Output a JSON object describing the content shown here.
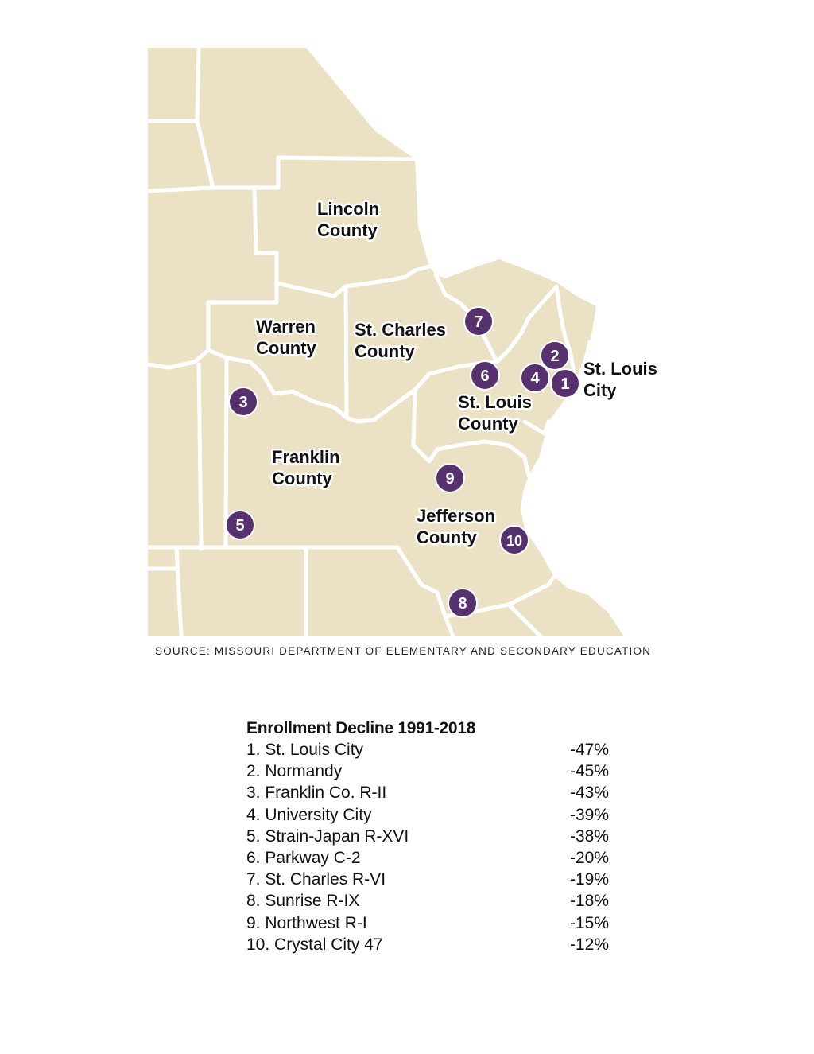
{
  "map": {
    "colors": {
      "land": "#ebe2c6",
      "border": "#ffffff",
      "marker": "#57306e",
      "marker_text": "#ffffff",
      "label_text": "#111111"
    },
    "counties": [
      {
        "id": "lincoln",
        "line1": "Lincoln",
        "line2": "County"
      },
      {
        "id": "warren",
        "line1": "Warren",
        "line2": "County"
      },
      {
        "id": "st-charles",
        "line1": "St. Charles",
        "line2": "County"
      },
      {
        "id": "st-louis-city",
        "line1": "St. Louis",
        "line2": "City"
      },
      {
        "id": "st-louis-county",
        "line1": "St. Louis",
        "line2": "County"
      },
      {
        "id": "franklin",
        "line1": "Franklin",
        "line2": "County"
      },
      {
        "id": "jefferson",
        "line1": "Jefferson",
        "line2": "County"
      }
    ],
    "markers": [
      "1",
      "2",
      "3",
      "4",
      "5",
      "6",
      "7",
      "8",
      "9",
      "10"
    ]
  },
  "source": "SOURCE: MISSOURI DEPARTMENT OF ELEMENTARY AND SECONDARY EDUCATION",
  "table": {
    "title": "Enrollment Decline 1991-2018",
    "rows": [
      {
        "name": "1. St. Louis City",
        "value": "-47%"
      },
      {
        "name": "2. Normandy",
        "value": "-45%"
      },
      {
        "name": "3. Franklin Co. R-II",
        "value": "-43%"
      },
      {
        "name": "4. University City",
        "value": "-39%"
      },
      {
        "name": "5. Strain-Japan R-XVI",
        "value": "-38%"
      },
      {
        "name": "6. Parkway C-2",
        "value": "-20%"
      },
      {
        "name": "7. St. Charles R-VI",
        "value": "-19%"
      },
      {
        "name": "8. Sunrise R-IX",
        "value": "-18%"
      },
      {
        "name": "9. Northwest R-I",
        "value": "-15%"
      },
      {
        "name": "10. Crystal City 47",
        "value": "-12%"
      }
    ]
  }
}
